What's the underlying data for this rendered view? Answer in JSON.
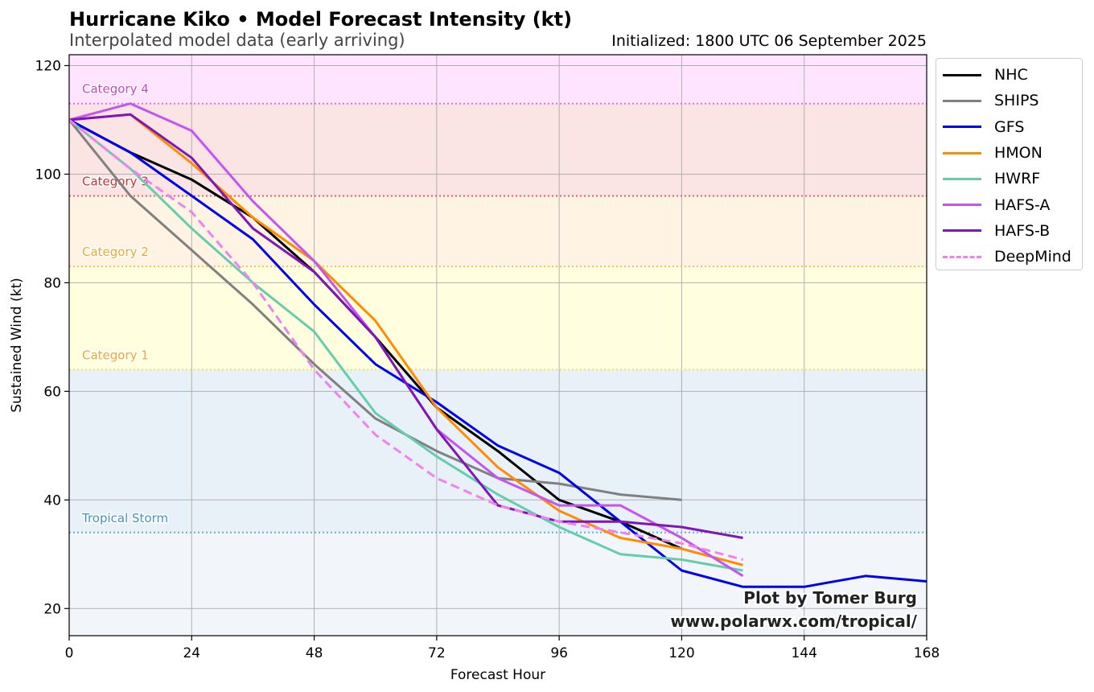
{
  "title": "Hurricane Kiko • Model Forecast Intensity (kt)",
  "subtitle": "Interpolated model data (early arriving)",
  "init_label": "Initialized: 1800 UTC 06 September 2025",
  "credit": {
    "line1": "Plot by Tomer Burg",
    "line2": "www.polarwx.com/tropical/"
  },
  "chart_data": {
    "type": "line",
    "title": "Hurricane Kiko • Model Forecast Intensity (kt)",
    "xlabel": "Forecast Hour",
    "ylabel": "Sustained Wind (kt)",
    "xlim": [
      0,
      168
    ],
    "ylim": [
      15,
      122
    ],
    "xticks": [
      0,
      24,
      48,
      72,
      96,
      120,
      144,
      168
    ],
    "yticks": [
      20,
      40,
      60,
      80,
      100,
      120
    ],
    "grid": true,
    "legend_position": "outside-right-top",
    "categories": [
      {
        "name": "Tropical Storm",
        "threshold": 34,
        "from": 34,
        "to": 64,
        "band_color": "#e8f0f8",
        "line_color": "#6baed6",
        "label_color": "#4a90c0"
      },
      {
        "name": "Category 1",
        "threshold": 64,
        "from": 64,
        "to": 83,
        "band_color": "#ffffe0",
        "line_color": "#f0e060",
        "label_color": "#f0a830"
      },
      {
        "name": "Category 2",
        "threshold": 83,
        "from": 83,
        "to": 96,
        "band_color": "#fff3e3",
        "line_color": "#f5c060",
        "label_color": "#f0a830"
      },
      {
        "name": "Category 3",
        "threshold": 96,
        "from": 96,
        "to": 113,
        "band_color": "#fbe4e4",
        "line_color": "#e86060",
        "label_color": "#d03030"
      },
      {
        "name": "Category 4",
        "threshold": 113,
        "from": 113,
        "to": 122,
        "band_color": "#ffe4ff",
        "line_color": "#e070e0",
        "label_color": "#d040d0"
      }
    ],
    "below_ts_band_color": "#f2f6fb",
    "series": [
      {
        "name": "NHC",
        "color": "#000000",
        "dashed": false,
        "x": [
          0,
          12,
          24,
          36,
          48,
          60,
          72,
          84,
          96,
          108,
          120
        ],
        "y": [
          110,
          104,
          99,
          92,
          82,
          70,
          57,
          49,
          40,
          36,
          31
        ]
      },
      {
        "name": "SHIPS",
        "color": "#808080",
        "dashed": false,
        "x": [
          0,
          12,
          24,
          36,
          48,
          60,
          72,
          84,
          96,
          108,
          120
        ],
        "y": [
          110,
          96,
          86,
          76,
          65,
          55,
          49,
          44,
          43,
          41,
          40
        ]
      },
      {
        "name": "GFS",
        "color": "#0000ee",
        "dashed": false,
        "x": [
          0,
          12,
          24,
          36,
          48,
          60,
          72,
          84,
          96,
          108,
          120,
          132,
          144,
          156,
          168
        ],
        "y": [
          110,
          104,
          96,
          88,
          76,
          65,
          58,
          50,
          45,
          36,
          27,
          24,
          24,
          26,
          25
        ]
      },
      {
        "name": "HMON",
        "color": "#ff8c00",
        "dashed": false,
        "x": [
          0,
          12,
          24,
          36,
          48,
          60,
          72,
          84,
          96,
          108,
          120,
          132
        ],
        "y": [
          110,
          111,
          102,
          92,
          84,
          73,
          57,
          46,
          38,
          33,
          31,
          28
        ]
      },
      {
        "name": "HWRF",
        "color": "#66cdaa",
        "dashed": false,
        "x": [
          0,
          12,
          24,
          36,
          48,
          60,
          72,
          84,
          96,
          108,
          120,
          132
        ],
        "y": [
          110,
          101,
          90,
          80,
          71,
          56,
          48,
          41,
          35,
          30,
          29,
          27
        ]
      },
      {
        "name": "HAFS-A",
        "color": "#c455f0",
        "dashed": false,
        "x": [
          0,
          12,
          24,
          36,
          48,
          60,
          72,
          84,
          96,
          108,
          120,
          132
        ],
        "y": [
          110,
          113,
          108,
          95,
          84,
          70,
          53,
          44,
          39,
          39,
          33,
          26
        ]
      },
      {
        "name": "HAFS-B",
        "color": "#8016b8",
        "dashed": false,
        "x": [
          0,
          12,
          24,
          36,
          48,
          60,
          72,
          84,
          96,
          108,
          120,
          132
        ],
        "y": [
          110,
          111,
          103,
          90,
          82,
          70,
          53,
          39,
          36,
          36,
          35,
          33
        ]
      },
      {
        "name": "DeepMind",
        "color": "#ee82ee",
        "dashed": true,
        "x": [
          0,
          12,
          24,
          36,
          48,
          60,
          72,
          84,
          96,
          108,
          120,
          132
        ],
        "y": [
          110,
          101,
          93,
          80,
          64,
          52,
          44,
          39,
          36,
          34,
          32,
          29
        ]
      }
    ]
  }
}
